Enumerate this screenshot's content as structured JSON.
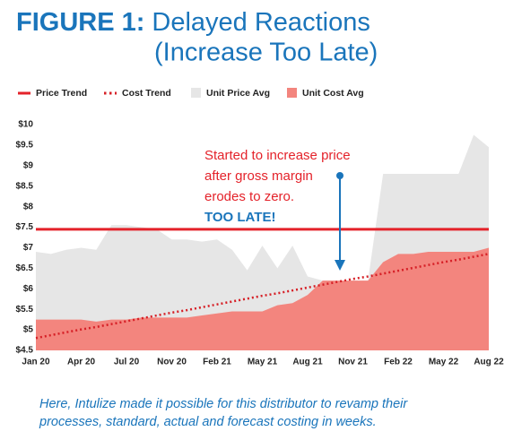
{
  "chart_data": {
    "type": "line-area",
    "figure_label": "FIGURE 1:",
    "title_lines": [
      "Delayed Reactions",
      "(Increase Too Late)"
    ],
    "categories": [
      "Jan 20",
      null,
      null,
      "Apr 20",
      null,
      null,
      "Jul 20",
      null,
      null,
      "Nov 20",
      null,
      null,
      "Feb 21",
      null,
      null,
      "May 21",
      null,
      null,
      "Aug 21",
      null,
      null,
      "Nov 21",
      null,
      null,
      "Feb 22",
      null,
      null,
      "May 22",
      null,
      null,
      "Aug 22"
    ],
    "series": [
      {
        "name": "Price Trend",
        "style": "line",
        "color": "#e4222a",
        "values": [
          7.45,
          7.45,
          7.45,
          7.45,
          7.45,
          7.45,
          7.45,
          7.45,
          7.45,
          7.45,
          7.45,
          7.45,
          7.45,
          7.45,
          7.45,
          7.45,
          7.45,
          7.45,
          7.45,
          7.45,
          7.45,
          7.45,
          7.45,
          7.45,
          7.45,
          7.45,
          7.45,
          7.45,
          7.45,
          7.45,
          7.45
        ]
      },
      {
        "name": "Cost Trend",
        "style": "dotted",
        "color": "#d61f26",
        "values": [
          4.8,
          4.87,
          4.94,
          5.01,
          5.07,
          5.14,
          5.21,
          5.28,
          5.35,
          5.42,
          5.48,
          5.55,
          5.62,
          5.69,
          5.76,
          5.83,
          5.89,
          5.96,
          6.03,
          6.1,
          6.17,
          6.24,
          6.3,
          6.37,
          6.44,
          6.51,
          6.58,
          6.65,
          6.71,
          6.78,
          6.85
        ]
      },
      {
        "name": "Unit Price Avg",
        "style": "area",
        "color": "#e6e6e6",
        "values": [
          6.9,
          6.85,
          6.95,
          7.0,
          6.95,
          7.55,
          7.55,
          7.5,
          7.45,
          7.2,
          7.2,
          7.15,
          7.2,
          6.95,
          6.45,
          7.05,
          6.5,
          7.05,
          6.3,
          6.2,
          6.2,
          6.2,
          6.2,
          8.8,
          8.8,
          8.8,
          8.8,
          8.8,
          8.8,
          9.75,
          9.45
        ]
      },
      {
        "name": "Unit Cost Avg",
        "style": "area",
        "color": "#f3857e",
        "values": [
          5.25,
          5.25,
          5.25,
          5.25,
          5.2,
          5.25,
          5.25,
          5.3,
          5.3,
          5.3,
          5.3,
          5.35,
          5.4,
          5.45,
          5.45,
          5.45,
          5.6,
          5.65,
          5.85,
          6.2,
          6.2,
          6.2,
          6.2,
          6.65,
          6.85,
          6.85,
          6.9,
          6.9,
          6.9,
          6.9,
          7.0
        ]
      }
    ],
    "ylim": [
      4.5,
      10
    ],
    "yticks": [
      {
        "value": 4.5,
        "label": "$4.5"
      },
      {
        "value": 5,
        "label": "$5"
      },
      {
        "value": 5.5,
        "label": "$5.5"
      },
      {
        "value": 6,
        "label": "$6"
      },
      {
        "value": 6.5,
        "label": "$6.5"
      },
      {
        "value": 7,
        "label": "$7"
      },
      {
        "value": 7.5,
        "label": "$7.5"
      },
      {
        "value": 8,
        "label": "$8"
      },
      {
        "value": 8.5,
        "label": "$8.5"
      },
      {
        "value": 9,
        "label": "$9"
      },
      {
        "value": 9.5,
        "label": "$9.5"
      },
      {
        "value": 10,
        "label": "$10"
      }
    ],
    "grid": false,
    "annotation": {
      "lines": [
        "Started to increase price",
        "after gross margin",
        "erodes to zero."
      ],
      "emphasis": "TOO LATE!"
    },
    "caption_lines": [
      "Here, Intulize made it possible for this distributor to revamp their",
      "processes, standard, actual and forecast costing in weeks."
    ]
  }
}
